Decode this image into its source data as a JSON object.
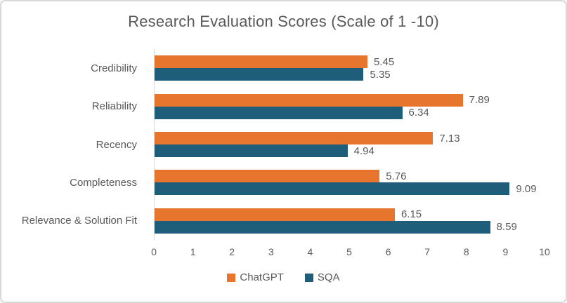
{
  "chart_data": {
    "type": "bar",
    "orientation": "horizontal",
    "title": "Research Evaluation Scores (Scale of 1 -10)",
    "categories": [
      "Credibility",
      "Reliability",
      "Recency",
      "Completeness",
      "Relevance & Solution Fit"
    ],
    "series": [
      {
        "name": "ChatGPT",
        "color": "#E8752D",
        "values": [
          5.45,
          7.89,
          7.13,
          5.76,
          6.15
        ]
      },
      {
        "name": "SQA",
        "color": "#1E5E7A",
        "values": [
          5.35,
          6.34,
          4.94,
          9.09,
          8.59
        ]
      }
    ],
    "xlim": [
      0,
      10
    ],
    "x_ticks": [
      "0",
      "1",
      "2",
      "3",
      "4",
      "5",
      "6",
      "7",
      "8",
      "9",
      "10"
    ],
    "grid": false,
    "legend_position": "bottom",
    "value_labels": true,
    "colors": {
      "text": "#595959",
      "axis_line": "#D9D9D9",
      "border": "#D9D9D9",
      "background": "#FFFFFF"
    }
  }
}
